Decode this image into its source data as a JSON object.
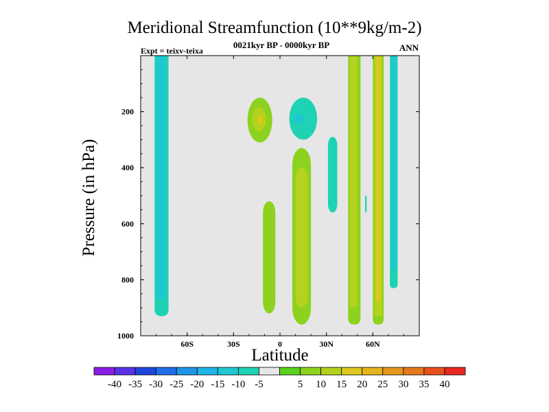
{
  "title": "Meridional Streamfunction (10**9kg/m-2)",
  "subtitle": "0021kyr BP - 0000kyr BP",
  "expt_label": "Expt = teixv-teixa",
  "season": "ANN",
  "colors": {
    "background_field": "#e6e6e6",
    "contour_palette": [
      "#8b1ee6",
      "#5a32e6",
      "#1e46dc",
      "#1e6ee6",
      "#1e96e6",
      "#1eb4e6",
      "#1ec8d2",
      "#1ed2b4",
      "#e6e6e6",
      "#5ad21e",
      "#8cd21e",
      "#b4d21e",
      "#dcc81e",
      "#e6b41e",
      "#e6961e",
      "#e6781e",
      "#e6501e",
      "#e6281e"
    ]
  },
  "chart_data": {
    "type": "heatmap",
    "title": "Meridional Streamfunction (10**9kg/m-2)",
    "subtitle": "0021kyr BP - 0000kyr BP",
    "xlabel": "Latitude",
    "ylabel": "Pressure (in hPa)",
    "xlim": [
      -90,
      90
    ],
    "ylim": [
      1000,
      0
    ],
    "x_ticks": [
      "60S",
      "30S",
      "0",
      "30N",
      "60N"
    ],
    "x_tick_values": [
      -60,
      -30,
      0,
      30,
      60
    ],
    "y_ticks": [
      "200",
      "400",
      "600",
      "800",
      "1000"
    ],
    "y_tick_values": [
      200,
      400,
      600,
      800,
      1000
    ],
    "colorbar_labels": [
      "-40",
      "-35",
      "-30",
      "-25",
      "-20",
      "-15",
      "-10",
      "-5",
      "5",
      "10",
      "15",
      "20",
      "25",
      "30",
      "35",
      "40"
    ],
    "features": [
      {
        "lat_min": -81,
        "lat_max": -72,
        "p_min": 0,
        "p_max": 930,
        "value": -10
      },
      {
        "lat_min": -80,
        "lat_max": -74,
        "p_min": 0,
        "p_max": 870,
        "value": -15
      },
      {
        "lat_min": -21,
        "lat_max": -5,
        "p_min": 150,
        "p_max": 310,
        "value": 10
      },
      {
        "lat_min": -18,
        "lat_max": -9,
        "p_min": 185,
        "p_max": 270,
        "value": 15
      },
      {
        "lat_min": -15,
        "lat_max": -11,
        "p_min": 215,
        "p_max": 245,
        "value": 20
      },
      {
        "lat_min": 6,
        "lat_max": 24,
        "p_min": 150,
        "p_max": 300,
        "value": -10
      },
      {
        "lat_min": 9,
        "lat_max": 15,
        "p_min": 205,
        "p_max": 245,
        "value": -15
      },
      {
        "lat_min": -11,
        "lat_max": -3,
        "p_min": 520,
        "p_max": 920,
        "value": 10
      },
      {
        "lat_min": 8,
        "lat_max": 20,
        "p_min": 330,
        "p_max": 960,
        "value": 10
      },
      {
        "lat_min": 10,
        "lat_max": 18,
        "p_min": 400,
        "p_max": 900,
        "value": 15
      },
      {
        "lat_min": 31,
        "lat_max": 37,
        "p_min": 290,
        "p_max": 560,
        "value": -10
      },
      {
        "lat_min": 44,
        "lat_max": 52,
        "p_min": 0,
        "p_max": 960,
        "value": 10
      },
      {
        "lat_min": 45,
        "lat_max": 50,
        "p_min": 0,
        "p_max": 900,
        "value": 15
      },
      {
        "lat_min": 60,
        "lat_max": 67,
        "p_min": 0,
        "p_max": 960,
        "value": 10
      },
      {
        "lat_min": 61,
        "lat_max": 66,
        "p_min": 0,
        "p_max": 930,
        "value": 15
      },
      {
        "lat_min": 62,
        "lat_max": 65,
        "p_min": 0,
        "p_max": 880,
        "value": 20
      },
      {
        "lat_min": 71,
        "lat_max": 76,
        "p_min": 0,
        "p_max": 830,
        "value": -10
      },
      {
        "lat_min": 72,
        "lat_max": 75,
        "p_min": 0,
        "p_max": 760,
        "value": -15
      },
      {
        "lat_min": 55,
        "lat_max": 56,
        "p_min": 500,
        "p_max": 560,
        "value": -10
      }
    ]
  }
}
